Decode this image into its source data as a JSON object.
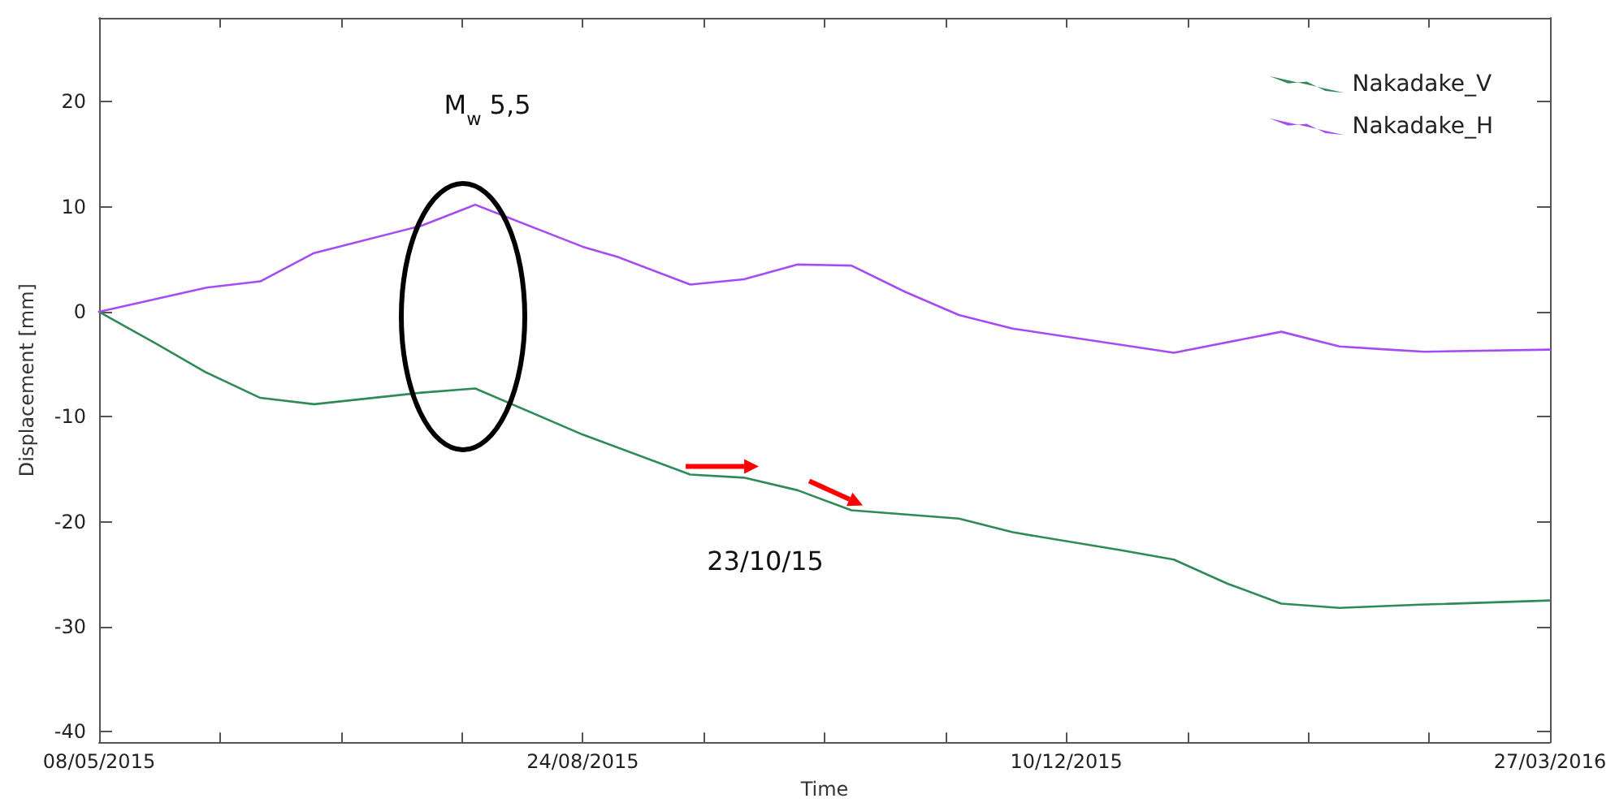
{
  "chart_data": {
    "type": "line",
    "xlabel": "Time",
    "ylabel": "Displacement [mm]",
    "xlim": [
      "2015-05-08",
      "2016-03-27"
    ],
    "ylim": [
      -41,
      28
    ],
    "xticks": [
      {
        "value": "2015-05-08",
        "label": "08/05/2015"
      },
      {
        "value": "2015-06-04",
        "label": null
      },
      {
        "value": "2015-07-01",
        "label": null
      },
      {
        "value": "2015-07-28",
        "label": null
      },
      {
        "value": "2015-08-24",
        "label": "24/08/2015"
      },
      {
        "value": "2015-09-20",
        "label": null
      },
      {
        "value": "2015-10-17",
        "label": null
      },
      {
        "value": "2015-11-13",
        "label": null
      },
      {
        "value": "2015-12-10",
        "label": "10/12/2015"
      },
      {
        "value": "2016-01-06",
        "label": null
      },
      {
        "value": "2016-02-02",
        "label": null
      },
      {
        "value": "2016-02-29",
        "label": null
      },
      {
        "value": "2016-03-27",
        "label": "27/03/2016"
      }
    ],
    "yticks": [
      -40,
      -30,
      -20,
      -10,
      0,
      10,
      20
    ],
    "grid": false,
    "legend": "top right",
    "marker": "none",
    "line_style": "solid",
    "annotations": [
      "M$_{w}$ 5,5",
      {
        "text": "23/10/15",
        "x": "2015-10-23",
        "y": -18.9
      }
    ],
    "series": [
      {
        "name": "Nakadake_V",
        "color": "#2e8b57",
        "x": [
          "2015-05-08",
          "2015-05-21",
          "2015-06-01",
          "2015-06-13",
          "2015-06-25",
          "2015-07-19",
          "2015-07-31",
          "2015-08-24",
          "2015-09-17",
          "2015-09-29",
          "2015-10-11",
          "2015-10-23",
          "2015-11-16",
          "2015-11-28",
          "2015-12-22",
          "2016-01-03",
          "2016-01-15",
          "2016-01-27",
          "2016-02-09",
          "2016-02-27",
          "2016-03-27"
        ],
        "values": [
          0,
          -3.1,
          -5.8,
          -8.2,
          -8.8,
          -7.7,
          -7.3,
          -11.7,
          -15.5,
          -15.8,
          -17.0,
          -18.9,
          -19.7,
          -21.0,
          -22.7,
          -23.6,
          -25.9,
          -27.8,
          -28.2,
          -27.9,
          -27.5
        ]
      },
      {
        "name": "Nakadake_H",
        "color": "#a64bf4",
        "x": [
          "2015-05-08",
          "2015-06-01",
          "2015-06-13",
          "2015-06-25",
          "2015-07-19",
          "2015-07-31",
          "2015-08-24",
          "2015-09-01",
          "2015-09-17",
          "2015-09-29",
          "2015-10-11",
          "2015-10-23",
          "2015-11-04",
          "2015-11-16",
          "2015-11-28",
          "2016-01-03",
          "2016-01-27",
          "2016-02-09",
          "2016-02-20",
          "2016-02-28",
          "2016-03-27"
        ],
        "values": [
          0,
          2.3,
          2.9,
          5.6,
          8.2,
          10.2,
          6.2,
          5.2,
          2.6,
          3.1,
          4.5,
          4.4,
          1.9,
          -0.3,
          -1.6,
          -3.9,
          -1.9,
          -3.3,
          -3.6,
          -3.8,
          -3.6
        ]
      }
    ]
  }
}
